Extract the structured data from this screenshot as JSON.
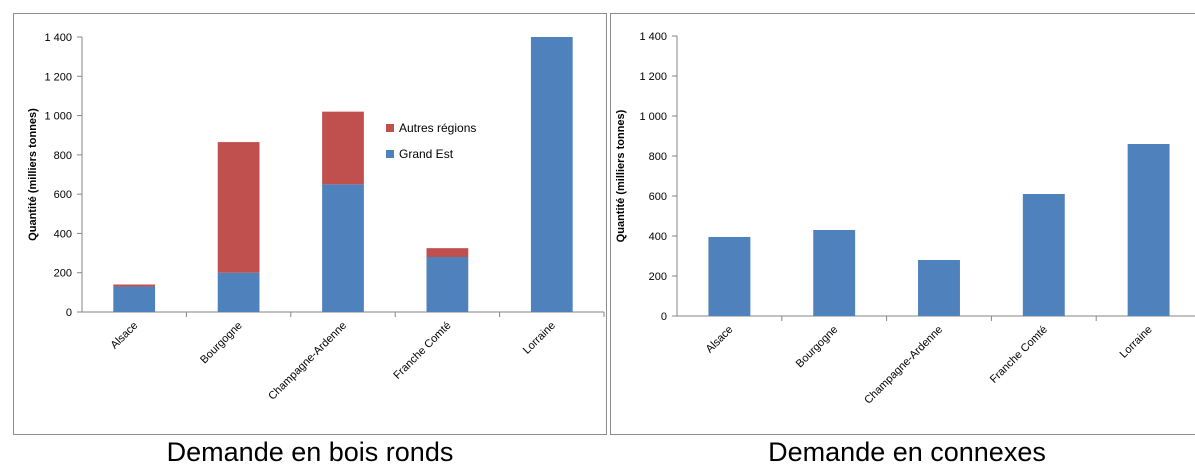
{
  "chart_data": [
    {
      "type": "bar",
      "stacked": true,
      "caption": "Demande en bois ronds",
      "ylabel": "Quantité (milliers tonnes)",
      "ylim": [
        0,
        1400
      ],
      "yticks": [
        "0",
        "200",
        "400",
        "600",
        "800",
        "1 000",
        "1 200",
        "1 400"
      ],
      "ytick_values": [
        0,
        200,
        400,
        600,
        800,
        1000,
        1200,
        1400
      ],
      "categories": [
        "Alsace",
        "Bourgogne",
        "Champagne-Ardenne",
        "Franche Comté",
        "Lorraine"
      ],
      "series": [
        {
          "name": "Grand Est",
          "color": "#4f81bd",
          "values": [
            130,
            200,
            650,
            280,
            1400
          ]
        },
        {
          "name": "Autres régions",
          "color": "#c0504d",
          "values": [
            10,
            665,
            370,
            45,
            0
          ]
        }
      ],
      "legend_position": "right",
      "grid": false
    },
    {
      "type": "bar",
      "caption": "Demande en connexes",
      "ylabel": "Quantité (milliers tonnes)",
      "ylim": [
        0,
        1400
      ],
      "yticks": [
        "0",
        "200",
        "400",
        "600",
        "800",
        "1 000",
        "1 200",
        "1 400"
      ],
      "ytick_values": [
        0,
        200,
        400,
        600,
        800,
        1000,
        1200,
        1400
      ],
      "categories": [
        "Alsace",
        "Bourgogne",
        "Champagne-Ardenne",
        "Franche Comté",
        "Lorraine"
      ],
      "series": [
        {
          "color": "#4f81bd",
          "values": [
            395,
            430,
            280,
            610,
            860
          ]
        }
      ],
      "grid": false
    }
  ]
}
